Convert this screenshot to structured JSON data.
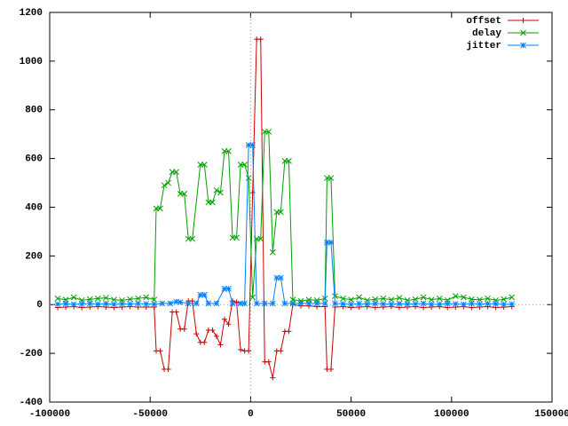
{
  "chart_data": {
    "type": "line",
    "xlim": [
      -100000,
      150000
    ],
    "ylim": [
      -400,
      1200
    ],
    "xticks": [
      -100000,
      -50000,
      0,
      50000,
      100000,
      150000
    ],
    "yticks": [
      -400,
      -200,
      0,
      200,
      400,
      600,
      800,
      1000,
      1200
    ],
    "grid": false,
    "zeroaxis": true,
    "legend": "top-right",
    "series": [
      {
        "name": "offset",
        "color": "#cc0000",
        "marker": "plus",
        "x": [
          -96000,
          -92000,
          -88000,
          -84000,
          -80000,
          -76000,
          -72000,
          -68000,
          -64000,
          -60000,
          -56000,
          -52000,
          -48000,
          -47000,
          -45000,
          -43000,
          -41000,
          -39000,
          -37000,
          -35000,
          -33000,
          -31000,
          -29000,
          -27000,
          -25000,
          -23000,
          -21000,
          -19000,
          -17000,
          -15000,
          -13000,
          -11000,
          -9000,
          -7000,
          -5000,
          -3000,
          -1000,
          1000,
          3000,
          5000,
          7000,
          9000,
          11000,
          13000,
          15000,
          17000,
          19000,
          21000,
          25000,
          29000,
          33000,
          37000,
          38000,
          40000,
          42000,
          46000,
          50000,
          54000,
          58000,
          62000,
          66000,
          70000,
          74000,
          78000,
          82000,
          86000,
          90000,
          94000,
          98000,
          102000,
          106000,
          110000,
          114000,
          118000,
          122000,
          126000,
          130000
        ],
        "values": [
          -12,
          -10,
          -8,
          -12,
          -10,
          -8,
          -10,
          -12,
          -10,
          -8,
          -10,
          -10,
          -10,
          -190,
          -190,
          -265,
          -265,
          -30,
          -30,
          -100,
          -100,
          15,
          15,
          -120,
          -155,
          -155,
          -105,
          -105,
          -130,
          -165,
          -60,
          -80,
          15,
          10,
          -185,
          -190,
          -190,
          460,
          1090,
          1090,
          -235,
          -235,
          -300,
          -190,
          -190,
          -110,
          -110,
          0,
          -5,
          -5,
          -8,
          -8,
          -265,
          -265,
          -10,
          -8,
          -12,
          -10,
          -8,
          -12,
          -10,
          -8,
          -12,
          -10,
          -8,
          -12,
          -10,
          -8,
          -12,
          -10,
          -8,
          -12,
          -10,
          -8,
          -12,
          -10,
          -8
        ]
      },
      {
        "name": "delay",
        "color": "#00a000",
        "marker": "cross",
        "x": [
          -96000,
          -92000,
          -88000,
          -84000,
          -80000,
          -76000,
          -72000,
          -68000,
          -64000,
          -60000,
          -56000,
          -52000,
          -48000,
          -47000,
          -45000,
          -43000,
          -41000,
          -39000,
          -37000,
          -35000,
          -33000,
          -31000,
          -29000,
          -25000,
          -23000,
          -21000,
          -19000,
          -17000,
          -15000,
          -13000,
          -11000,
          -9000,
          -7000,
          -5000,
          -3000,
          -1000,
          1000,
          3000,
          5000,
          7000,
          9000,
          11000,
          13000,
          15000,
          17000,
          19000,
          21000,
          25000,
          29000,
          33000,
          37000,
          38000,
          40000,
          42000,
          46000,
          50000,
          54000,
          58000,
          62000,
          66000,
          70000,
          74000,
          78000,
          82000,
          86000,
          90000,
          94000,
          98000,
          102000,
          106000,
          110000,
          114000,
          118000,
          122000,
          126000,
          130000
        ],
        "values": [
          25,
          20,
          30,
          18,
          22,
          25,
          28,
          20,
          18,
          22,
          25,
          30,
          20,
          395,
          395,
          490,
          500,
          545,
          545,
          455,
          455,
          270,
          270,
          575,
          575,
          420,
          420,
          470,
          460,
          630,
          630,
          275,
          275,
          575,
          575,
          520,
          30,
          270,
          270,
          710,
          710,
          215,
          380,
          380,
          590,
          590,
          20,
          15,
          20,
          18,
          25,
          520,
          520,
          35,
          25,
          20,
          30,
          18,
          22,
          25,
          20,
          28,
          18,
          22,
          30,
          20,
          25,
          18,
          35,
          30,
          22,
          20,
          25,
          18,
          22,
          30
        ]
      },
      {
        "name": "jitter",
        "color": "#0080ff",
        "marker": "star",
        "x": [
          -96000,
          -92000,
          -88000,
          -84000,
          -80000,
          -76000,
          -72000,
          -68000,
          -64000,
          -60000,
          -56000,
          -52000,
          -48000,
          -44000,
          -40000,
          -37000,
          -35000,
          -31000,
          -27000,
          -25000,
          -23000,
          -21000,
          -17000,
          -13000,
          -11000,
          -9000,
          -5000,
          -3000,
          -1000,
          1000,
          3000,
          7000,
          11000,
          13000,
          15000,
          17000,
          21000,
          25000,
          29000,
          33000,
          37000,
          38000,
          40000,
          42000,
          46000,
          50000,
          54000,
          58000,
          62000,
          66000,
          70000,
          74000,
          78000,
          82000,
          86000,
          90000,
          94000,
          98000,
          102000,
          106000,
          110000,
          114000,
          118000,
          122000,
          126000,
          130000
        ],
        "values": [
          2,
          4,
          1,
          3,
          5,
          2,
          4,
          1,
          3,
          2,
          5,
          3,
          2,
          5,
          5,
          12,
          10,
          5,
          5,
          40,
          40,
          5,
          5,
          65,
          65,
          5,
          5,
          5,
          655,
          655,
          5,
          5,
          5,
          110,
          110,
          5,
          5,
          5,
          5,
          5,
          5,
          255,
          255,
          5,
          3,
          1,
          4,
          2,
          5,
          3,
          1,
          4,
          2,
          3,
          5,
          1,
          2,
          4,
          3,
          1,
          5,
          2,
          4,
          3,
          1,
          2
        ]
      }
    ]
  }
}
